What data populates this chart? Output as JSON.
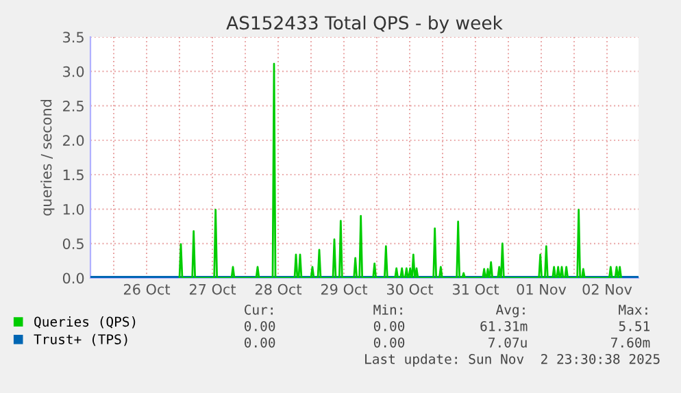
{
  "chart_data": {
    "type": "line",
    "title": "AS152433 Total QPS - by week",
    "ylabel": "queries / second",
    "xlim": [
      "2025-10-25T15:30",
      "2025-11-02T23:30"
    ],
    "xticks": [
      {
        "value": "2025-10-26T00:00",
        "label": null
      },
      {
        "value": "2025-10-26T12:00",
        "label": "26 Oct"
      },
      {
        "value": "2025-10-27T00:00",
        "label": null
      },
      {
        "value": "2025-10-27T12:00",
        "label": "27 Oct"
      },
      {
        "value": "2025-10-28T00:00",
        "label": null
      },
      {
        "value": "2025-10-28T12:00",
        "label": "28 Oct"
      },
      {
        "value": "2025-10-29T00:00",
        "label": null
      },
      {
        "value": "2025-10-29T12:00",
        "label": "29 Oct"
      },
      {
        "value": "2025-10-30T00:00",
        "label": null
      },
      {
        "value": "2025-10-30T12:00",
        "label": "30 Oct"
      },
      {
        "value": "2025-10-31T00:00",
        "label": null
      },
      {
        "value": "2025-10-31T12:00",
        "label": "31 Oct"
      },
      {
        "value": "2025-11-01T00:00",
        "label": null
      },
      {
        "value": "2025-11-01T12:00",
        "label": "01 Nov"
      },
      {
        "value": "2025-11-02T00:00",
        "label": null
      },
      {
        "value": "2025-11-02T12:00",
        "label": "02 Nov"
      }
    ],
    "ylim": [
      0,
      3.5
    ],
    "yticks": [
      {
        "value": 0,
        "label": "0.0"
      },
      {
        "value": 0.5,
        "label": "0.5"
      },
      {
        "value": 1,
        "label": "1.0"
      },
      {
        "value": 1.5,
        "label": "1.5"
      },
      {
        "value": 2,
        "label": "2.0"
      },
      {
        "value": 2.5,
        "label": "2.5"
      },
      {
        "value": 3,
        "label": "3.0"
      },
      {
        "value": 3.5,
        "label": "3.5"
      }
    ],
    "grid": true,
    "legend": "bottom",
    "marker": "none",
    "line_style": "solid",
    "series": [
      {
        "name": "Queries (QPS)",
        "color": "#00cc00",
        "x": [
          "2025-10-27T00:00",
          "2025-10-27T00:30",
          "2025-10-27T01:00",
          "2025-10-27T04:40",
          "2025-10-27T05:10",
          "2025-10-27T05:40",
          "2025-10-27T12:40",
          "2025-10-27T13:10",
          "2025-10-27T13:40",
          "2025-10-27T19:00",
          "2025-10-27T19:30",
          "2025-10-27T20:00",
          "2025-10-28T04:00",
          "2025-10-28T04:30",
          "2025-10-28T05:00",
          "2025-10-28T10:00",
          "2025-10-28T10:30",
          "2025-10-28T11:00",
          "2025-10-28T18:00",
          "2025-10-28T18:30",
          "2025-10-28T19:00",
          "2025-10-28T19:30",
          "2025-10-28T20:00",
          "2025-10-28T20:30",
          "2025-10-29T00:00",
          "2025-10-29T00:30",
          "2025-10-29T01:00",
          "2025-10-29T02:30",
          "2025-10-29T03:00",
          "2025-10-29T03:30",
          "2025-10-29T08:00",
          "2025-10-29T08:30",
          "2025-10-29T09:00",
          "2025-10-29T10:20",
          "2025-10-29T10:50",
          "2025-10-29T11:20",
          "2025-10-29T15:40",
          "2025-10-29T16:10",
          "2025-10-29T16:40",
          "2025-10-29T17:40",
          "2025-10-29T18:10",
          "2025-10-29T18:40",
          "2025-10-29T22:40",
          "2025-10-29T23:10",
          "2025-10-29T23:40",
          "2025-10-30T02:50",
          "2025-10-30T03:20",
          "2025-10-30T03:50",
          "2025-10-30T06:40",
          "2025-10-30T07:10",
          "2025-10-30T07:40",
          "2025-10-30T08:40",
          "2025-10-30T09:10",
          "2025-10-30T09:40",
          "2025-10-30T10:20",
          "2025-10-30T10:50",
          "2025-10-30T11:20",
          "2025-10-30T11:40",
          "2025-10-30T12:10",
          "2025-10-30T12:40",
          "2025-10-30T12:50",
          "2025-10-30T13:20",
          "2025-10-30T13:50",
          "2025-10-30T14:00",
          "2025-10-30T14:30",
          "2025-10-30T15:00",
          "2025-10-30T20:40",
          "2025-10-30T21:10",
          "2025-10-30T21:40",
          "2025-10-30T22:50",
          "2025-10-30T23:20",
          "2025-10-30T23:50",
          "2025-10-31T05:10",
          "2025-10-31T05:40",
          "2025-10-31T06:10",
          "2025-10-31T07:10",
          "2025-10-31T07:40",
          "2025-10-31T08:10",
          "2025-10-31T14:40",
          "2025-10-31T15:10",
          "2025-10-31T15:40",
          "2025-10-31T16:00",
          "2025-10-31T16:30",
          "2025-10-31T17:00",
          "2025-10-31T17:10",
          "2025-10-31T17:40",
          "2025-10-31T18:10",
          "2025-10-31T20:10",
          "2025-10-31T20:40",
          "2025-10-31T21:10",
          "2025-10-31T21:20",
          "2025-10-31T21:50",
          "2025-10-31T22:20",
          "2025-11-01T11:10",
          "2025-11-01T11:40",
          "2025-11-01T12:10",
          "2025-11-01T13:20",
          "2025-11-01T13:50",
          "2025-11-01T14:20",
          "2025-11-01T16:10",
          "2025-11-01T16:40",
          "2025-11-01T17:10",
          "2025-11-01T17:40",
          "2025-11-01T18:10",
          "2025-11-01T18:40",
          "2025-11-01T19:00",
          "2025-11-01T19:30",
          "2025-11-01T20:00",
          "2025-11-01T20:40",
          "2025-11-01T21:10",
          "2025-11-01T21:40",
          "2025-11-02T01:10",
          "2025-11-02T01:40",
          "2025-11-02T02:10",
          "2025-11-02T02:50",
          "2025-11-02T03:20",
          "2025-11-02T03:50",
          "2025-11-02T12:50",
          "2025-11-02T13:20",
          "2025-11-02T13:50",
          "2025-11-02T15:00",
          "2025-11-02T15:30",
          "2025-11-02T16:00",
          "2025-11-02T16:10",
          "2025-11-02T16:40",
          "2025-11-02T17:10"
        ],
        "values": [
          0,
          0.49,
          0,
          0,
          0.68,
          0,
          0,
          0.99,
          0,
          0,
          0.16,
          0,
          0,
          0.16,
          0,
          0,
          3.11,
          0,
          0,
          0.34,
          0,
          0,
          0.34,
          0,
          0,
          0.16,
          0,
          0,
          0.41,
          0,
          0,
          0.56,
          0,
          0,
          0.83,
          0,
          0,
          0.29,
          0,
          0,
          0.9,
          0,
          0,
          0.21,
          0,
          0,
          0.46,
          0,
          0,
          0.14,
          0,
          0,
          0.14,
          0,
          0,
          0.14,
          0,
          0,
          0.14,
          0,
          0,
          0.34,
          0,
          0,
          0.14,
          0,
          0,
          0.72,
          0,
          0,
          0.16,
          0,
          0,
          0.82,
          0,
          0,
          0.07,
          0,
          0,
          0.13,
          0,
          0,
          0.13,
          0,
          0,
          0.23,
          0,
          0,
          0.16,
          0,
          0,
          0.5,
          0,
          0,
          0.34,
          0,
          0,
          0.46,
          0,
          0,
          0.16,
          0,
          0,
          0.16,
          0,
          0,
          0.16,
          0,
          0,
          0.16,
          0,
          0,
          0.99,
          0,
          0,
          0.13,
          0,
          0,
          0.16,
          0,
          0,
          0.16,
          0,
          0,
          0.16,
          0
        ]
      },
      {
        "name": "Trust+ (TPS)",
        "color": "#0066b3",
        "x": [
          "2025-10-25T15:30",
          "2025-11-02T23:30"
        ],
        "values": [
          0,
          0
        ]
      }
    ],
    "annotations": [
      "Cur:",
      "Min:",
      "Avg:",
      "Max:",
      "0.00",
      "0.00",
      "61.31m",
      "5.51",
      "0.00",
      "0.00",
      "7.07u",
      "7.60m",
      "Last update: Sun Nov  2 23:30:38 2025"
    ]
  }
}
